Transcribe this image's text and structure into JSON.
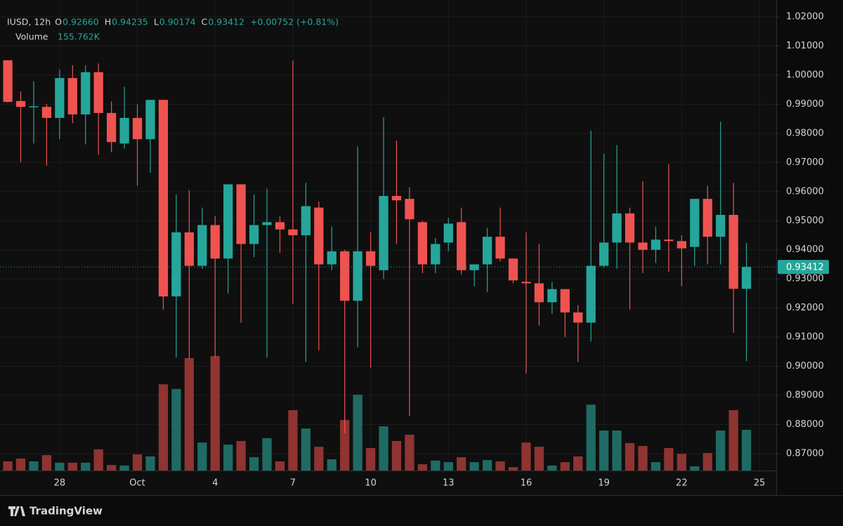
{
  "chart_data": {
    "type": "candlestick",
    "legend": {
      "symbol": "IUSD, 12h",
      "items": [
        {
          "label": "O",
          "value": "0.92660"
        },
        {
          "label": "H",
          "value": "0.94235"
        },
        {
          "label": "L",
          "value": "0.90174"
        },
        {
          "label": "C",
          "value": "0.93412"
        }
      ],
      "change": "+0.00752 (+0.81%)",
      "volume_label": "Volume",
      "volume_value": "155.762K"
    },
    "up_color": "#26a69a",
    "down_color": "#ef5350",
    "open": [
      1.0051,
      0.9911,
      0.9891,
      0.9891,
      0.9853,
      0.999,
      0.9865,
      1.001,
      0.987,
      0.9765,
      0.9853,
      0.978,
      0.9915,
      0.924,
      0.946,
      0.9345,
      0.9485,
      0.937,
      0.9625,
      0.942,
      0.9485,
      0.9495,
      0.947,
      0.945,
      0.9545,
      0.935,
      0.9395,
      0.9225,
      0.9395,
      0.933,
      0.9585,
      0.9575,
      0.9495,
      0.935,
      0.9425,
      0.9495,
      0.933,
      0.935,
      0.9445,
      0.937,
      0.929,
      0.9285,
      0.922,
      0.9265,
      0.9185,
      0.915,
      0.9345,
      0.9425,
      0.9525,
      0.9425,
      0.94,
      0.9435,
      0.943,
      0.941,
      0.9575,
      0.9445,
      0.952,
      0.9266
    ],
    "high": [
      1.0051,
      0.9944,
      0.9979,
      0.9901,
      1.0019,
      1.0034,
      1.0034,
      1.004,
      0.991,
      0.996,
      0.99,
      0.9915,
      0.9915,
      0.959,
      0.9605,
      0.9545,
      0.9515,
      0.9625,
      0.9625,
      0.959,
      0.961,
      0.9515,
      1.005,
      0.963,
      0.9565,
      0.948,
      0.94,
      0.9755,
      0.946,
      0.9855,
      0.9775,
      0.9615,
      0.95,
      0.944,
      0.951,
      0.9545,
      0.935,
      0.9475,
      0.9545,
      0.937,
      0.946,
      0.942,
      0.929,
      0.9265,
      0.921,
      0.981,
      0.973,
      0.976,
      0.9545,
      0.9635,
      0.948,
      0.9695,
      0.945,
      0.9575,
      0.962,
      0.984,
      0.963,
      0.94235
    ],
    "low": [
      0.9905,
      0.9701,
      0.9765,
      0.9689,
      0.978,
      0.9835,
      0.9762,
      0.9727,
      0.9735,
      0.9747,
      0.962,
      0.9665,
      0.9195,
      0.903,
      0.9025,
      0.9335,
      0.903,
      0.925,
      0.915,
      0.9375,
      0.903,
      0.939,
      0.9215,
      0.9015,
      0.9055,
      0.933,
      0.877,
      0.9065,
      0.8995,
      0.93,
      0.942,
      0.883,
      0.932,
      0.932,
      0.9395,
      0.9315,
      0.9275,
      0.9255,
      0.936,
      0.9285,
      0.8975,
      0.914,
      0.918,
      0.91,
      0.9015,
      0.9085,
      0.934,
      0.9335,
      0.9195,
      0.932,
      0.9355,
      0.9325,
      0.9275,
      0.9345,
      0.935,
      0.935,
      0.9115,
      0.90174
    ],
    "close": [
      0.9908,
      0.9891,
      0.9893,
      0.9853,
      0.999,
      0.9865,
      1.001,
      0.987,
      0.977,
      0.9853,
      0.978,
      0.9915,
      0.924,
      0.946,
      0.9345,
      0.9485,
      0.937,
      0.9625,
      0.942,
      0.9485,
      0.9495,
      0.947,
      0.945,
      0.955,
      0.935,
      0.9395,
      0.9225,
      0.9395,
      0.9345,
      0.9585,
      0.957,
      0.9505,
      0.935,
      0.942,
      0.949,
      0.933,
      0.935,
      0.9445,
      0.937,
      0.9295,
      0.9285,
      0.922,
      0.9265,
      0.9185,
      0.915,
      0.9345,
      0.9425,
      0.9525,
      0.9425,
      0.94,
      0.9435,
      0.943,
      0.9405,
      0.9575,
      0.9445,
      0.952,
      0.9266,
      0.93412
    ],
    "volume": [
      35,
      46,
      35,
      59,
      30,
      30,
      30,
      81,
      21,
      19,
      62,
      54,
      330,
      312,
      430,
      107,
      438,
      99,
      113,
      51,
      124,
      35,
      231,
      161,
      91,
      43,
      193,
      290,
      86,
      169,
      113,
      137,
      24,
      38,
      32,
      51,
      32,
      40,
      35,
      13,
      107,
      91,
      19,
      32,
      54,
      252,
      153,
      153,
      105,
      94,
      32,
      86,
      64,
      16,
      67,
      153,
      231,
      155.762
    ],
    "xlim": [
      -0.6,
      59.3
    ],
    "xticks": [
      {
        "value": 4,
        "label": "28"
      },
      {
        "value": 10,
        "label": "Oct"
      },
      {
        "value": 16,
        "label": "4"
      },
      {
        "value": 22,
        "label": "7"
      },
      {
        "value": 28,
        "label": "10"
      },
      {
        "value": 34,
        "label": "13"
      },
      {
        "value": 40,
        "label": "16"
      },
      {
        "value": 46,
        "label": "19"
      },
      {
        "value": 52,
        "label": "22"
      },
      {
        "value": 58,
        "label": "25"
      }
    ],
    "ylim": [
      0.8642,
      1.0258
    ],
    "yticks": [
      {
        "value": 1.02,
        "label": "1.02000"
      },
      {
        "value": 1.01,
        "label": "1.01000"
      },
      {
        "value": 1.0,
        "label": "1.00000"
      },
      {
        "value": 0.99,
        "label": "0.99000"
      },
      {
        "value": 0.98,
        "label": "0.98000"
      },
      {
        "value": 0.97,
        "label": "0.97000"
      },
      {
        "value": 0.96,
        "label": "0.96000"
      },
      {
        "value": 0.95,
        "label": "0.95000"
      },
      {
        "value": 0.94,
        "label": "0.94000"
      },
      {
        "value": 0.93,
        "label": "0.93000"
      },
      {
        "value": 0.92,
        "label": "0.92000"
      },
      {
        "value": 0.91,
        "label": "0.91000"
      },
      {
        "value": 0.9,
        "label": "0.90000"
      },
      {
        "value": 0.89,
        "label": "0.89000"
      },
      {
        "value": 0.88,
        "label": "0.88000"
      },
      {
        "value": 0.87,
        "label": "0.87000"
      }
    ],
    "last_price": {
      "value": 0.93412,
      "label": "0.93412"
    },
    "grid": true
  },
  "footer": {
    "brand": "TradingView"
  }
}
